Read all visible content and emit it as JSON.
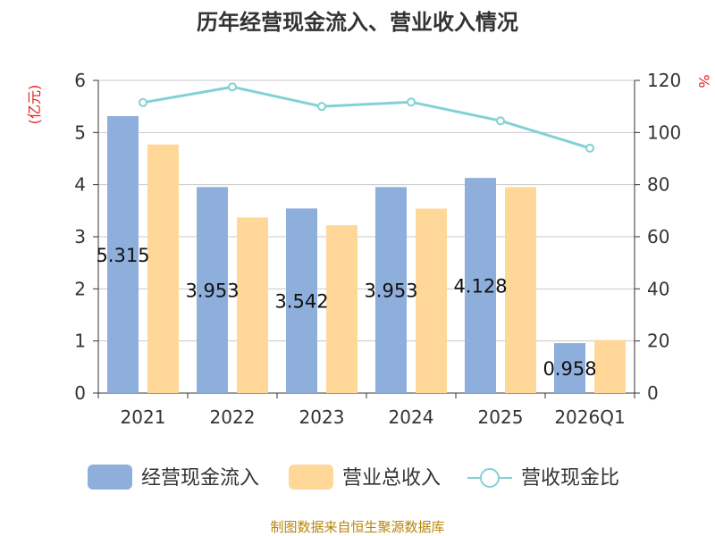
{
  "chart_data": {
    "type": "bar",
    "title": "历年经营现金流入、营业收入情况",
    "categories": [
      "2021",
      "2022",
      "2023",
      "2024",
      "2025",
      "2026Q1"
    ],
    "y_left": {
      "unit_label": "(亿元)",
      "range": [
        0,
        6
      ],
      "ticks": [
        "0",
        "1",
        "2",
        "3",
        "4",
        "5",
        "6"
      ]
    },
    "y_right": {
      "unit_label": "%",
      "range": [
        0,
        120
      ],
      "ticks": [
        "0",
        "20",
        "40",
        "60",
        "80",
        "100",
        "120"
      ]
    },
    "series": [
      {
        "name": "经营现金流入",
        "type": "bar",
        "axis": "left",
        "color": "#8eaedb",
        "values": [
          5.315,
          3.953,
          3.542,
          3.953,
          4.128,
          0.958
        ],
        "labels": [
          "5.315",
          "3.953",
          "3.542",
          "3.953",
          "4.128",
          "0.958"
        ]
      },
      {
        "name": "营业总收入",
        "type": "bar",
        "axis": "left",
        "color": "#ffd899",
        "values": [
          4.77,
          3.37,
          3.22,
          3.54,
          3.95,
          1.02
        ]
      },
      {
        "name": "营收现金比",
        "type": "line",
        "axis": "right",
        "color": "#82d1d4",
        "values": [
          111.5,
          117.5,
          110.0,
          111.7,
          104.5,
          94.0
        ]
      }
    ],
    "grid": true,
    "legend_position": "bottom"
  },
  "source": "制图数据来自恒生聚源数据库"
}
